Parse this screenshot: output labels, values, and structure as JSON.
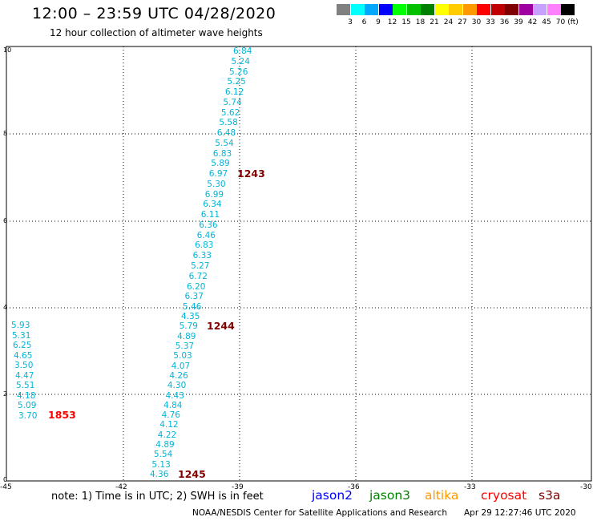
{
  "header": {
    "title": "12:00 – 23:59 UTC 04/28/2020",
    "subtitle": "12 hour collection of altimeter wave heights"
  },
  "legend": {
    "colors": [
      "#808080",
      "#00ffff",
      "#00a8ff",
      "#0000ff",
      "#00ff00",
      "#00c000",
      "#008000",
      "#ffff00",
      "#ffcc00",
      "#ff9900",
      "#ff0000",
      "#c00000",
      "#800000",
      "#a000a0",
      "#c8a0ff",
      "#ff80ff",
      "#000000"
    ],
    "labels": [
      "3",
      "6",
      "9",
      "12",
      "15",
      "18",
      "21",
      "24",
      "27",
      "30",
      "33",
      "36",
      "39",
      "42",
      "45",
      "70"
    ],
    "unit": "(ft)"
  },
  "axes": {
    "y_ticks": [
      "10",
      "8",
      "6",
      "4",
      "2",
      "0"
    ],
    "x_ticks": [
      "-45",
      "-42",
      "-39",
      "-36",
      "-33",
      "-30"
    ]
  },
  "passes": [
    {
      "id": "1243",
      "color": "#800000",
      "values": [
        "6.84",
        "5.24",
        "5.26",
        "5.25",
        "6.12",
        "5.74",
        "5.62",
        "5.58",
        "6.48",
        "5.54",
        "6.83",
        "5.89",
        "6.97",
        "5.30",
        "6.99",
        "6.34",
        "6.11",
        "6.36",
        "6.46",
        "6.83",
        "6.33",
        "5.27",
        "6.72",
        "6.20",
        "6.37",
        "5.46"
      ]
    },
    {
      "id": "1244",
      "color": "#800000",
      "values": [
        "4.35",
        "5.79",
        "4.89",
        "5.37",
        "5.03",
        "4.07",
        "4.26",
        "4.30",
        "4.43",
        "4.84",
        "4.76",
        "4.12",
        "4.22",
        "4.89",
        "5.54",
        "5.13",
        "4.36"
      ]
    },
    {
      "id": "1245",
      "color": "#800000"
    },
    {
      "id": "1853",
      "color": "#ff0000",
      "values": [
        "5.93",
        "5.31",
        "6.25",
        "4.65",
        "3.50",
        "4.47",
        "5.51",
        "4.18",
        "5.09",
        "3.70"
      ]
    }
  ],
  "footer": {
    "note": "note:  1) Time is in UTC;  2) SWH is in feet",
    "satellites": [
      {
        "name": "jason2",
        "color": "#0000ff"
      },
      {
        "name": "jason3",
        "color": "#008000"
      },
      {
        "name": "altika",
        "color": "#ff9900"
      },
      {
        "name": "cryosat",
        "color": "#ff0000"
      },
      {
        "name": "s3a",
        "color": "#800000"
      }
    ],
    "credit": "NOAA/NESDIS Center for Satellite Applications and Research",
    "timestamp": "Apr 29 12:27:46 UTC 2020"
  }
}
